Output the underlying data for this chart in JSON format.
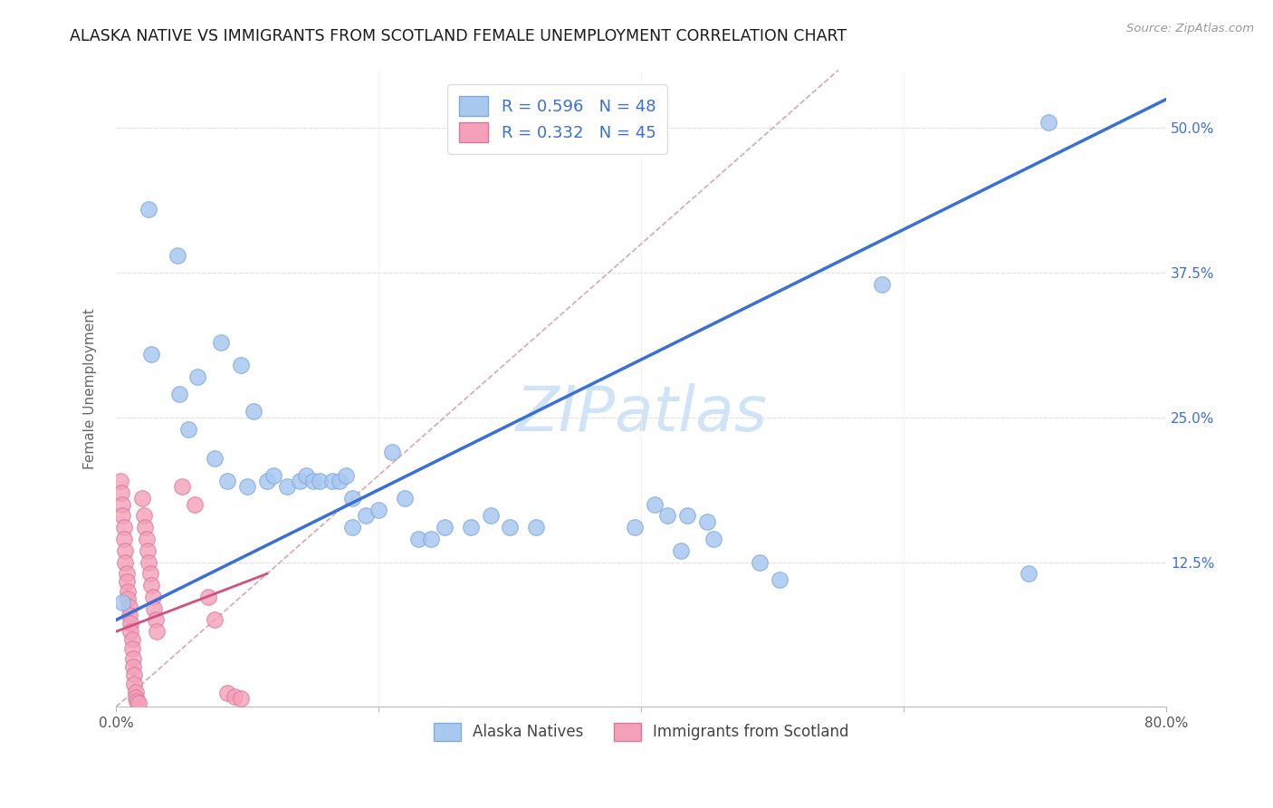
{
  "title": "ALASKA NATIVE VS IMMIGRANTS FROM SCOTLAND FEMALE UNEMPLOYMENT CORRELATION CHART",
  "source": "Source: ZipAtlas.com",
  "ylabel": "Female Unemployment",
  "xlim": [
    0.0,
    0.8
  ],
  "ylim": [
    0.0,
    0.55
  ],
  "x_ticks": [
    0.0,
    0.2,
    0.4,
    0.6,
    0.8
  ],
  "x_tick_labels": [
    "0.0%",
    "",
    "",
    "",
    "80.0%"
  ],
  "y_ticks": [
    0.0,
    0.125,
    0.25,
    0.375,
    0.5
  ],
  "y_tick_labels": [
    "",
    "12.5%",
    "25.0%",
    "37.5%",
    "50.0%"
  ],
  "blue_dot_color": "#a8c8f0",
  "blue_dot_edge": "#80aada",
  "pink_dot_color": "#f4a0b8",
  "pink_dot_edge": "#d878a0",
  "blue_line_color": "#3a6fd8",
  "pink_line_color": "#d05080",
  "diag_line_color": "#d8a8b0",
  "grid_color": "#e0e0e0",
  "watermark_color": "#d0e4f7",
  "legend_r_blue": "R = 0.596",
  "legend_n_blue": "N = 48",
  "legend_r_pink": "R = 0.332",
  "legend_n_pink": "N = 45",
  "legend_text_color": "#3a6fd8",
  "bottom_legend_blue": "Alaska Natives",
  "bottom_legend_pink": "Immigrants from Scotland",
  "blue_line_x0": 0.0,
  "blue_line_y0": 0.075,
  "blue_line_x1": 0.8,
  "blue_line_y1": 0.525,
  "pink_line_x0": 0.0,
  "pink_line_y0": 0.065,
  "pink_line_x1": 0.115,
  "pink_line_y1": 0.115,
  "diag_line_x0": 0.0,
  "diag_line_x1": 0.55,
  "blue_points": [
    [
      0.025,
      0.43
    ],
    [
      0.047,
      0.39
    ],
    [
      0.027,
      0.305
    ],
    [
      0.08,
      0.315
    ],
    [
      0.048,
      0.27
    ],
    [
      0.095,
      0.295
    ],
    [
      0.062,
      0.285
    ],
    [
      0.055,
      0.24
    ],
    [
      0.105,
      0.255
    ],
    [
      0.075,
      0.215
    ],
    [
      0.085,
      0.195
    ],
    [
      0.1,
      0.19
    ],
    [
      0.115,
      0.195
    ],
    [
      0.12,
      0.2
    ],
    [
      0.13,
      0.19
    ],
    [
      0.14,
      0.195
    ],
    [
      0.145,
      0.2
    ],
    [
      0.15,
      0.195
    ],
    [
      0.155,
      0.195
    ],
    [
      0.165,
      0.195
    ],
    [
      0.17,
      0.195
    ],
    [
      0.175,
      0.2
    ],
    [
      0.18,
      0.18
    ],
    [
      0.19,
      0.165
    ],
    [
      0.18,
      0.155
    ],
    [
      0.2,
      0.17
    ],
    [
      0.21,
      0.22
    ],
    [
      0.22,
      0.18
    ],
    [
      0.23,
      0.145
    ],
    [
      0.24,
      0.145
    ],
    [
      0.25,
      0.155
    ],
    [
      0.27,
      0.155
    ],
    [
      0.285,
      0.165
    ],
    [
      0.3,
      0.155
    ],
    [
      0.32,
      0.155
    ],
    [
      0.395,
      0.155
    ],
    [
      0.41,
      0.175
    ],
    [
      0.42,
      0.165
    ],
    [
      0.435,
      0.165
    ],
    [
      0.45,
      0.16
    ],
    [
      0.455,
      0.145
    ],
    [
      0.43,
      0.135
    ],
    [
      0.49,
      0.125
    ],
    [
      0.505,
      0.11
    ],
    [
      0.583,
      0.365
    ],
    [
      0.695,
      0.115
    ],
    [
      0.71,
      0.505
    ],
    [
      0.005,
      0.09
    ]
  ],
  "pink_points": [
    [
      0.003,
      0.195
    ],
    [
      0.004,
      0.185
    ],
    [
      0.005,
      0.175
    ],
    [
      0.005,
      0.165
    ],
    [
      0.006,
      0.155
    ],
    [
      0.006,
      0.145
    ],
    [
      0.007,
      0.135
    ],
    [
      0.007,
      0.125
    ],
    [
      0.008,
      0.115
    ],
    [
      0.008,
      0.108
    ],
    [
      0.009,
      0.1
    ],
    [
      0.009,
      0.093
    ],
    [
      0.01,
      0.086
    ],
    [
      0.01,
      0.079
    ],
    [
      0.011,
      0.072
    ],
    [
      0.011,
      0.065
    ],
    [
      0.012,
      0.058
    ],
    [
      0.012,
      0.05
    ],
    [
      0.013,
      0.042
    ],
    [
      0.013,
      0.035
    ],
    [
      0.014,
      0.028
    ],
    [
      0.014,
      0.02
    ],
    [
      0.015,
      0.013
    ],
    [
      0.015,
      0.008
    ],
    [
      0.016,
      0.005
    ],
    [
      0.017,
      0.003
    ],
    [
      0.02,
      0.18
    ],
    [
      0.021,
      0.165
    ],
    [
      0.022,
      0.155
    ],
    [
      0.023,
      0.145
    ],
    [
      0.024,
      0.135
    ],
    [
      0.025,
      0.125
    ],
    [
      0.026,
      0.115
    ],
    [
      0.027,
      0.105
    ],
    [
      0.028,
      0.095
    ],
    [
      0.029,
      0.085
    ],
    [
      0.03,
      0.075
    ],
    [
      0.031,
      0.065
    ],
    [
      0.05,
      0.19
    ],
    [
      0.06,
      0.175
    ],
    [
      0.07,
      0.095
    ],
    [
      0.075,
      0.075
    ],
    [
      0.085,
      0.012
    ],
    [
      0.09,
      0.009
    ],
    [
      0.095,
      0.007
    ]
  ]
}
